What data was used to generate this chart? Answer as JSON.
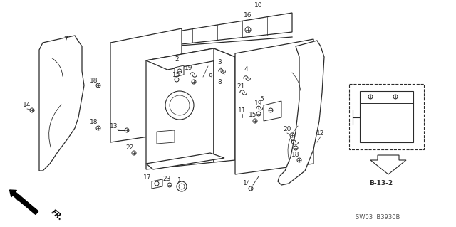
{
  "bg_color": "#ffffff",
  "fig_width": 6.4,
  "fig_height": 3.19,
  "dpi": 100,
  "watermark": "SW03  B3930B",
  "b132_label": "B-13-2",
  "lc": "#2a2a2a",
  "lw": 0.8,
  "fs": 6.5
}
